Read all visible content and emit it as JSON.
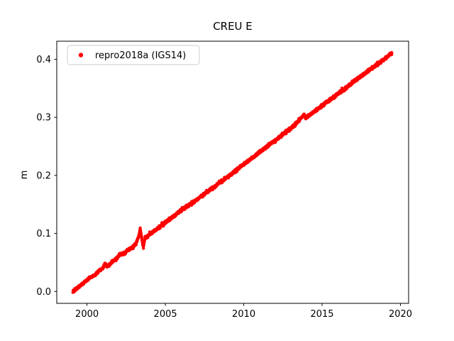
{
  "window": {
    "title": "CREU E time series plot"
  },
  "chart_data": {
    "type": "scatter",
    "title": "CREU E",
    "xlabel": "",
    "ylabel": "m",
    "xlim": [
      1998.07,
      2020.52
    ],
    "ylim": [
      -0.0205,
      0.4312
    ],
    "x_ticks": [
      2000,
      2005,
      2010,
      2015,
      2020
    ],
    "x_tick_labels": [
      "2000",
      "2005",
      "2010",
      "2015",
      "2020"
    ],
    "y_ticks": [
      0.0,
      0.1,
      0.2,
      0.3,
      0.4
    ],
    "y_tick_labels": [
      "0.0",
      "0.1",
      "0.2",
      "0.3",
      "0.4"
    ],
    "grid": false,
    "legend": {
      "position": "upper left",
      "entries": [
        {
          "label": "repro2018a (IGS14)",
          "marker": "dot",
          "color": "#ff0000"
        }
      ]
    },
    "series": [
      {
        "name": "repro2018a (IGS14)",
        "color": "#ff0000",
        "marker": "circle",
        "trend": "approximately linear, ~0.0202 m/yr from 0.000 m in 1999.1 to 0.411 m in 2019.45",
        "anchor_points": [
          [
            1999.1,
            0.0
          ],
          [
            1999.4,
            0.006
          ],
          [
            1999.7,
            0.013
          ],
          [
            2000.0,
            0.019
          ],
          [
            2000.2,
            0.024
          ],
          [
            2000.5,
            0.028
          ],
          [
            2000.8,
            0.036
          ],
          [
            2001.0,
            0.04
          ],
          [
            2001.15,
            0.047
          ],
          [
            2001.3,
            0.043
          ],
          [
            2001.6,
            0.051
          ],
          [
            2001.9,
            0.057
          ],
          [
            2002.1,
            0.064
          ],
          [
            2002.3,
            0.064
          ],
          [
            2002.6,
            0.071
          ],
          [
            2002.9,
            0.076
          ],
          [
            2003.1,
            0.081
          ],
          [
            2003.3,
            0.095
          ],
          [
            2003.4,
            0.108
          ],
          [
            2003.5,
            0.09
          ],
          [
            2003.6,
            0.076
          ],
          [
            2003.7,
            0.092
          ],
          [
            2003.85,
            0.095
          ],
          [
            2004.0,
            0.098
          ],
          [
            2004.5,
            0.108
          ],
          [
            2005.0,
            0.119
          ],
          [
            2006.0,
            0.139
          ],
          [
            2007.0,
            0.158
          ],
          [
            2008.0,
            0.178
          ],
          [
            2009.0,
            0.198
          ],
          [
            2010.0,
            0.219
          ],
          [
            2011.0,
            0.24
          ],
          [
            2012.0,
            0.26
          ],
          [
            2013.0,
            0.281
          ],
          [
            2013.85,
            0.3035
          ],
          [
            2013.95,
            0.299
          ],
          [
            2015.0,
            0.32
          ],
          [
            2016.0,
            0.34
          ],
          [
            2017.0,
            0.361
          ],
          [
            2018.0,
            0.381
          ],
          [
            2019.0,
            0.401
          ],
          [
            2019.45,
            0.411
          ]
        ]
      }
    ]
  }
}
